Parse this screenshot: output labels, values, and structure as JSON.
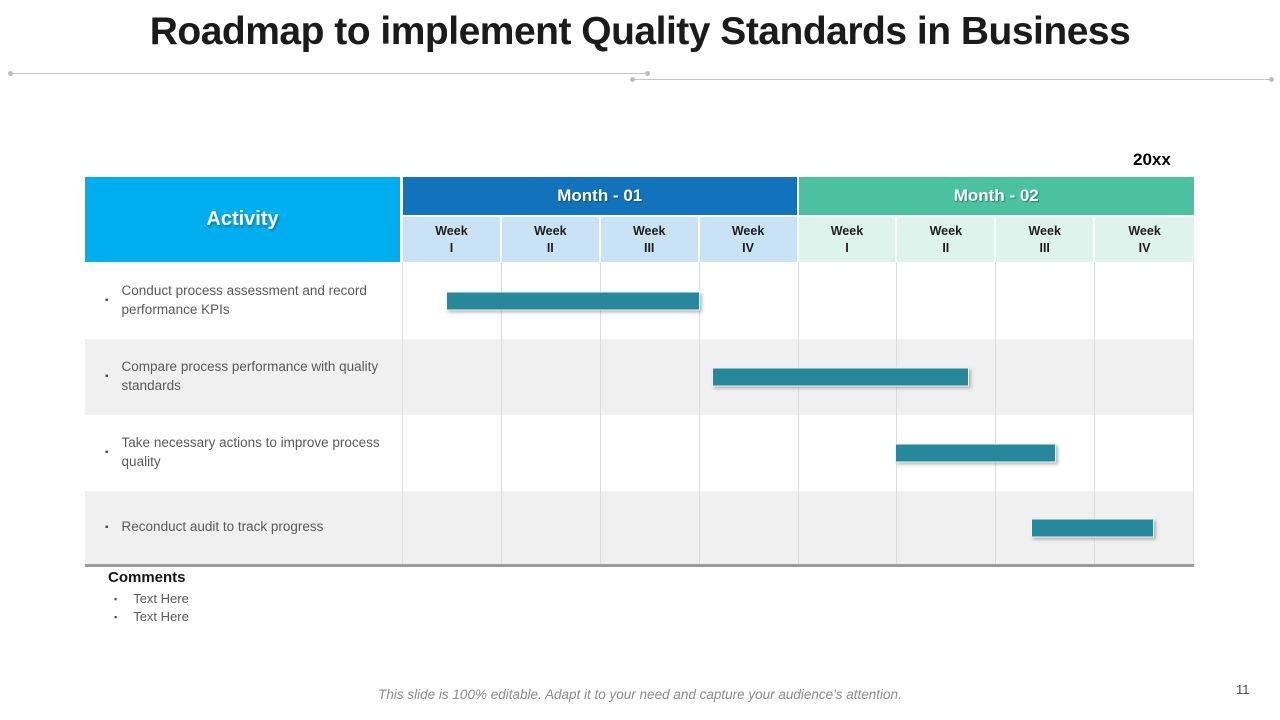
{
  "slide": {
    "title": "Roadmap to implement Quality Standards in Business",
    "year_label": "20xx",
    "footer_note": "This slide is 100% editable. Adapt it to your need and capture your audience's attention.",
    "page_number": "11"
  },
  "table": {
    "activity_header": "Activity",
    "week_word": "Week",
    "months": [
      {
        "label": "Month - 01",
        "weeks": [
          "I",
          "II",
          "III",
          "IV"
        ]
      },
      {
        "label": "Month - 02",
        "weeks": [
          "I",
          "II",
          "III",
          "IV"
        ]
      }
    ],
    "rows": [
      {
        "label": "Conduct process assessment and record performance KPIs"
      },
      {
        "label": "Compare process performance with quality standards"
      },
      {
        "label": "Take necessary actions to improve process quality"
      },
      {
        "label": "Reconduct audit to track progress"
      }
    ]
  },
  "comments": {
    "heading": "Comments",
    "items": [
      "Text Here",
      "Text Here"
    ]
  },
  "colors": {
    "activity_header_bg": "#00AEEF",
    "month1_bg": "#1273BC",
    "month2_bg": "#4BC1A1",
    "week_m1_bg": "#C9E2F6",
    "week_m2_bg": "#DFF3ED",
    "bar_fill": "#27879B",
    "row_alt_bg": "#F0F0F0"
  },
  "chart_data": {
    "type": "gantt",
    "title": "Roadmap to implement Quality Standards in Business",
    "xlabel": "Weeks (Month - 01 Weeks I–IV, Month - 02 Weeks I–IV)",
    "ylabel": "Activity",
    "x_axis_range_weeks": [
      0,
      8
    ],
    "columns": [
      "M1 Week I",
      "M1 Week II",
      "M1 Week III",
      "M1 Week IV",
      "M2 Week I",
      "M2 Week II",
      "M2 Week III",
      "M2 Week IV"
    ],
    "grid": true,
    "bars": [
      {
        "activity": "Conduct process assessment and record performance KPIs",
        "start_week": 0.43,
        "end_week": 3.0
      },
      {
        "activity": "Compare process performance with quality standards",
        "start_week": 3.13,
        "end_week": 5.72
      },
      {
        "activity": "Take necessary actions to improve process quality",
        "start_week": 4.98,
        "end_week": 6.6
      },
      {
        "activity": "Reconduct audit to track progress",
        "start_week": 6.35,
        "end_week": 7.6
      }
    ]
  }
}
